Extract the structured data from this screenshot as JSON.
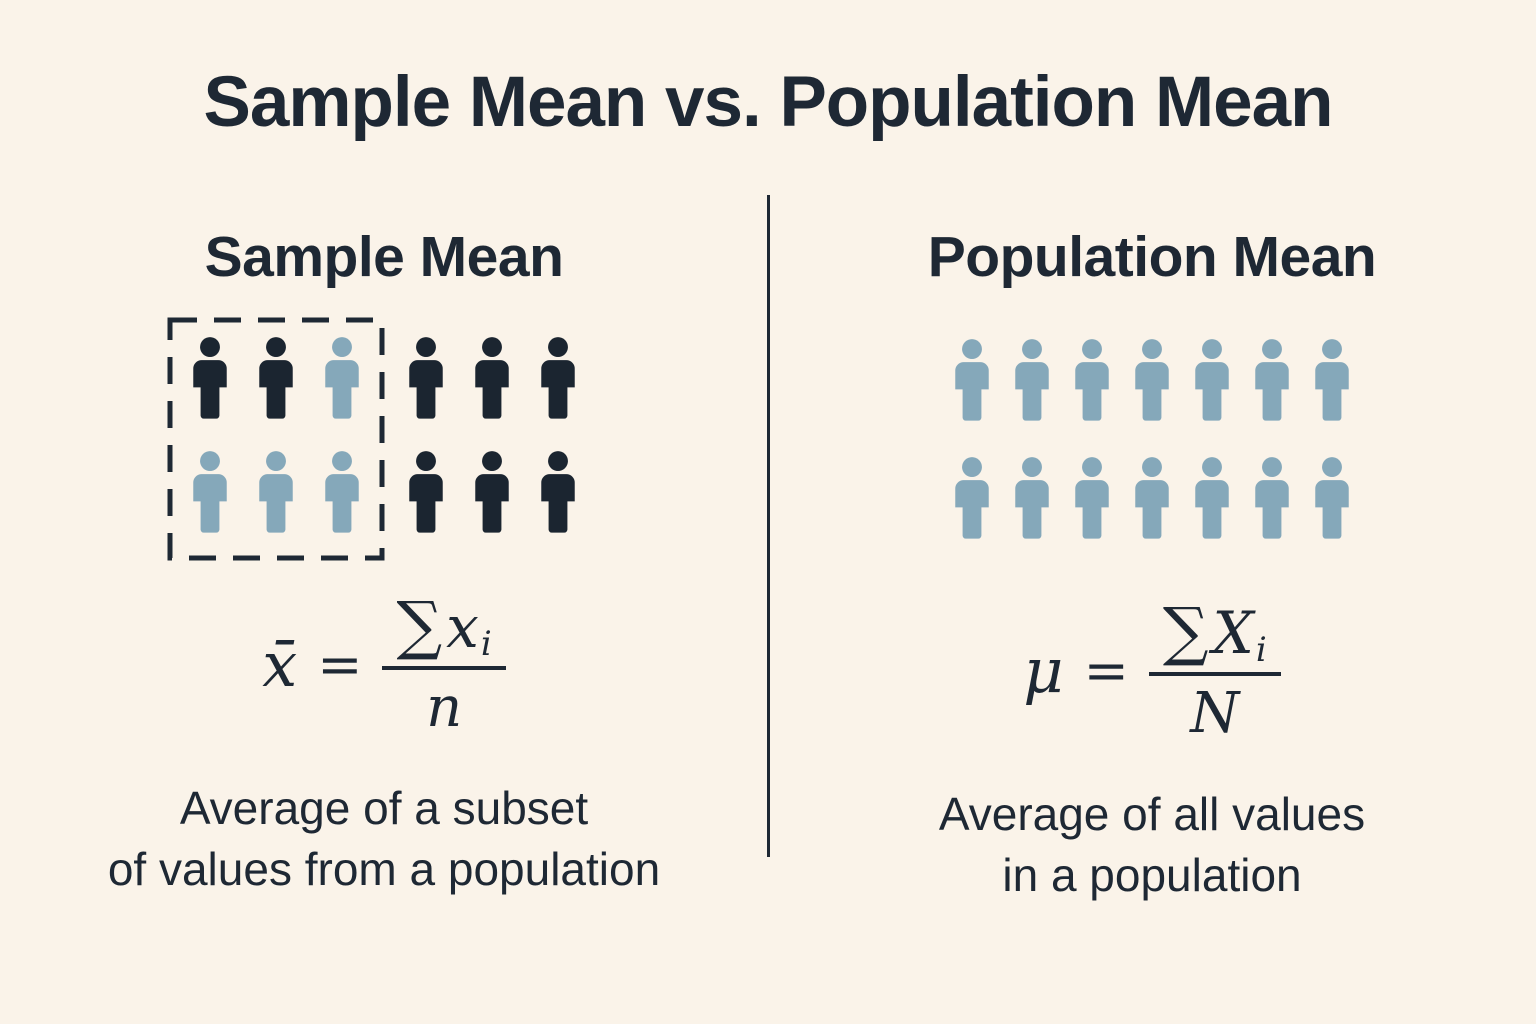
{
  "title": "Sample Mean vs. Population Mean",
  "colors": {
    "background": "#faf3e9",
    "dark": "#1b2530",
    "light": "#85a8ba",
    "text": "#1e2834",
    "divider": "#1e2834"
  },
  "left": {
    "heading": "Sample Mean",
    "grid": {
      "rows": [
        [
          "dark",
          "dark",
          "light",
          "dark",
          "dark",
          "dark"
        ],
        [
          "light",
          "light",
          "light",
          "dark",
          "dark",
          "dark"
        ]
      ],
      "boxed_columns": 3
    },
    "formula": {
      "lhs": "x̄",
      "equals": "=",
      "sum": "∑",
      "variable": "x",
      "subscript": "i",
      "denominator": "n"
    },
    "caption": [
      "Average of a subset",
      "of values from a population"
    ]
  },
  "right": {
    "heading": "Population Mean",
    "grid": {
      "rows": [
        [
          "light",
          "light",
          "light",
          "light",
          "light",
          "light",
          "light"
        ],
        [
          "light",
          "light",
          "light",
          "light",
          "light",
          "light",
          "light"
        ]
      ],
      "boxed_columns": 0
    },
    "formula": {
      "lhs": "μ",
      "equals": "=",
      "sum": "∑",
      "variable": "X",
      "subscript": "i",
      "denominator": "N"
    },
    "caption": [
      "Average of all values",
      "in a population"
    ]
  }
}
